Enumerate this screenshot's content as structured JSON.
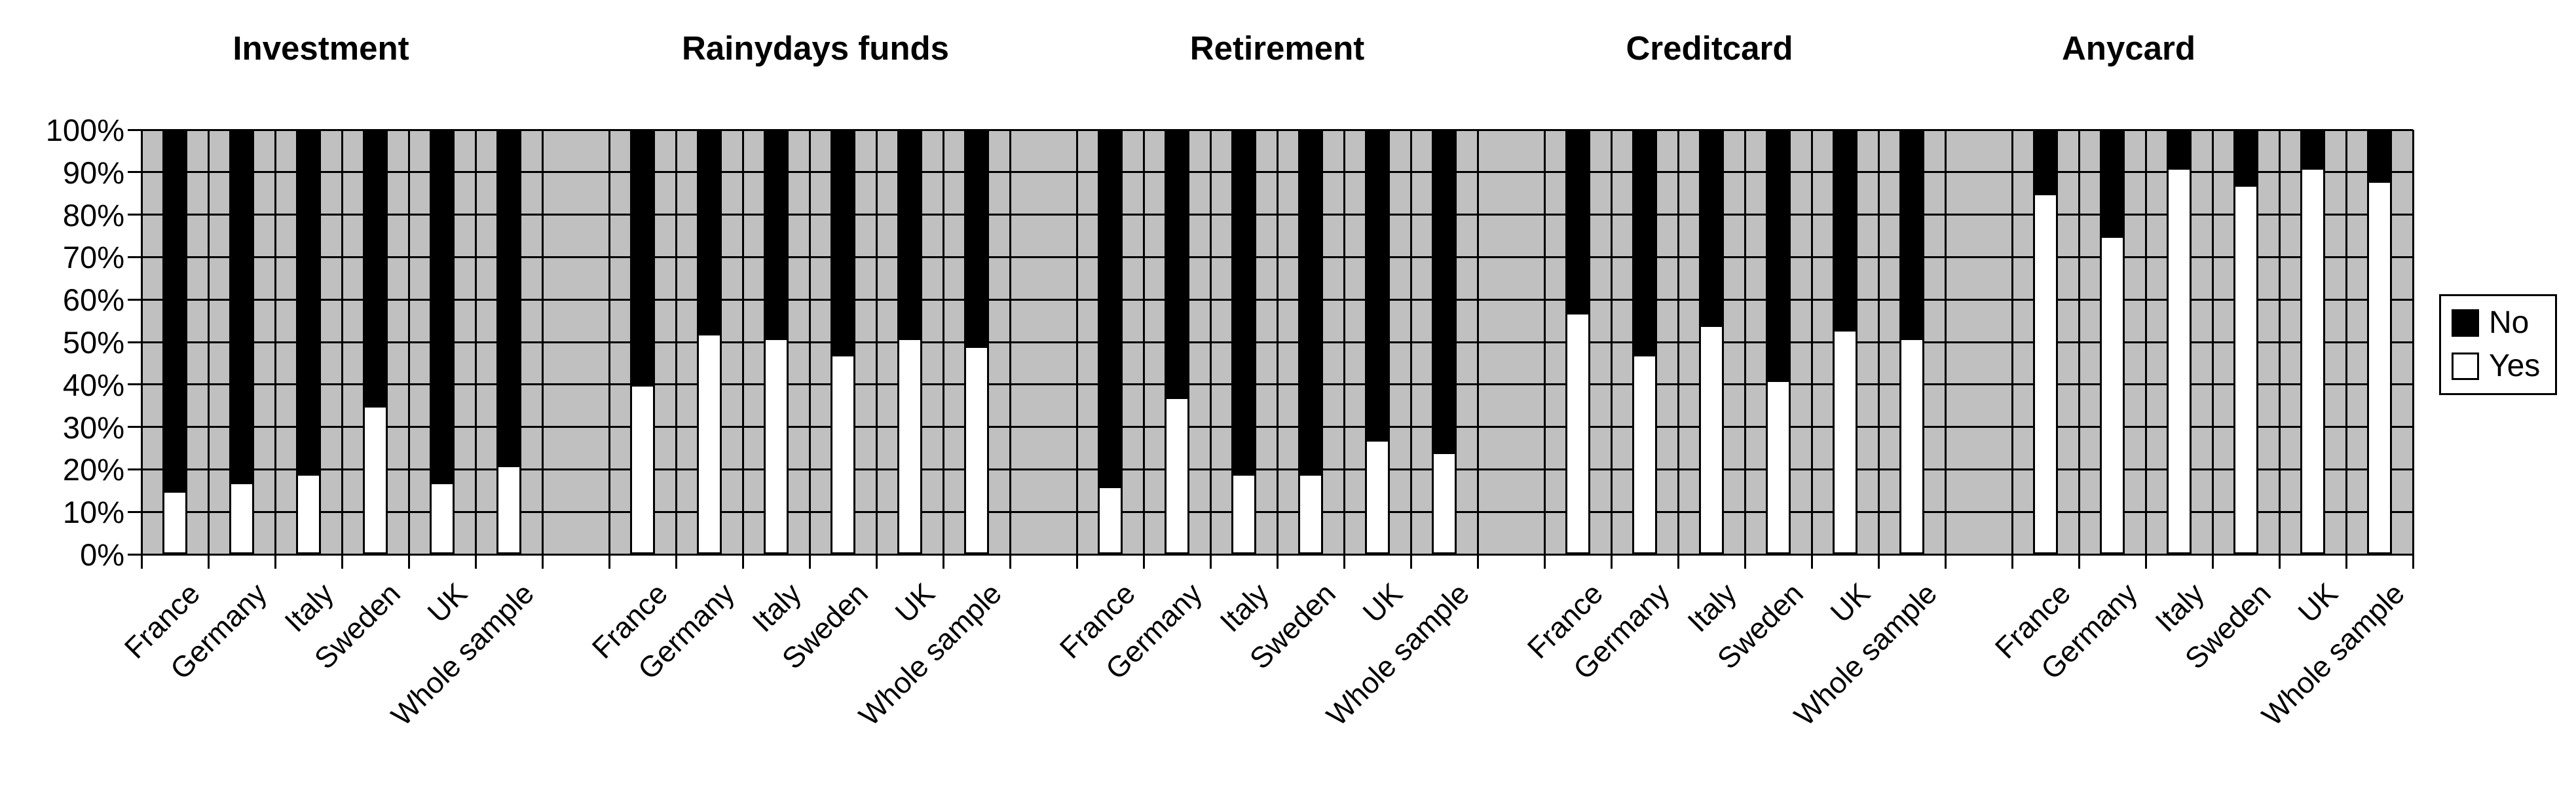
{
  "chart_data": {
    "type": "bar",
    "stacking": "percent",
    "orientation": "vertical",
    "plot_bg_color": "#c0c0c0",
    "grid": true,
    "panel_titles": [
      "Investment",
      "Rainydays funds",
      "Retirement",
      "Creditcard",
      "Anycard"
    ],
    "categories": [
      "France",
      "Germany",
      "Italy",
      "Sweden",
      "UK",
      "Whole sample"
    ],
    "series": [
      {
        "name": "No",
        "color": "#000000",
        "derived": "100 minus Yes"
      },
      {
        "name": "Yes",
        "color": "#ffffff"
      }
    ],
    "yes_values_by_panel": [
      [
        15,
        17,
        19,
        35,
        17,
        21
      ],
      [
        40,
        52,
        51,
        47,
        51,
        49
      ],
      [
        16,
        37,
        19,
        19,
        27,
        24
      ],
      [
        57,
        47,
        54,
        41,
        53,
        51
      ],
      [
        85,
        75,
        91,
        87,
        91,
        88
      ]
    ],
    "ylim": [
      0,
      100
    ],
    "y_tick_labels": [
      "0%",
      "10%",
      "20%",
      "30%",
      "40%",
      "50%",
      "60%",
      "70%",
      "80%",
      "90%",
      "100%"
    ],
    "legend": {
      "position": "right",
      "entries": [
        {
          "label": "No",
          "color": "#000000"
        },
        {
          "label": "Yes",
          "color": "#ffffff"
        }
      ]
    }
  },
  "layout_hints": {
    "panel_title_centers_x": [
      490,
      1245,
      1950,
      2610,
      3250
    ],
    "x_axis_label_rotation_deg": -45
  }
}
